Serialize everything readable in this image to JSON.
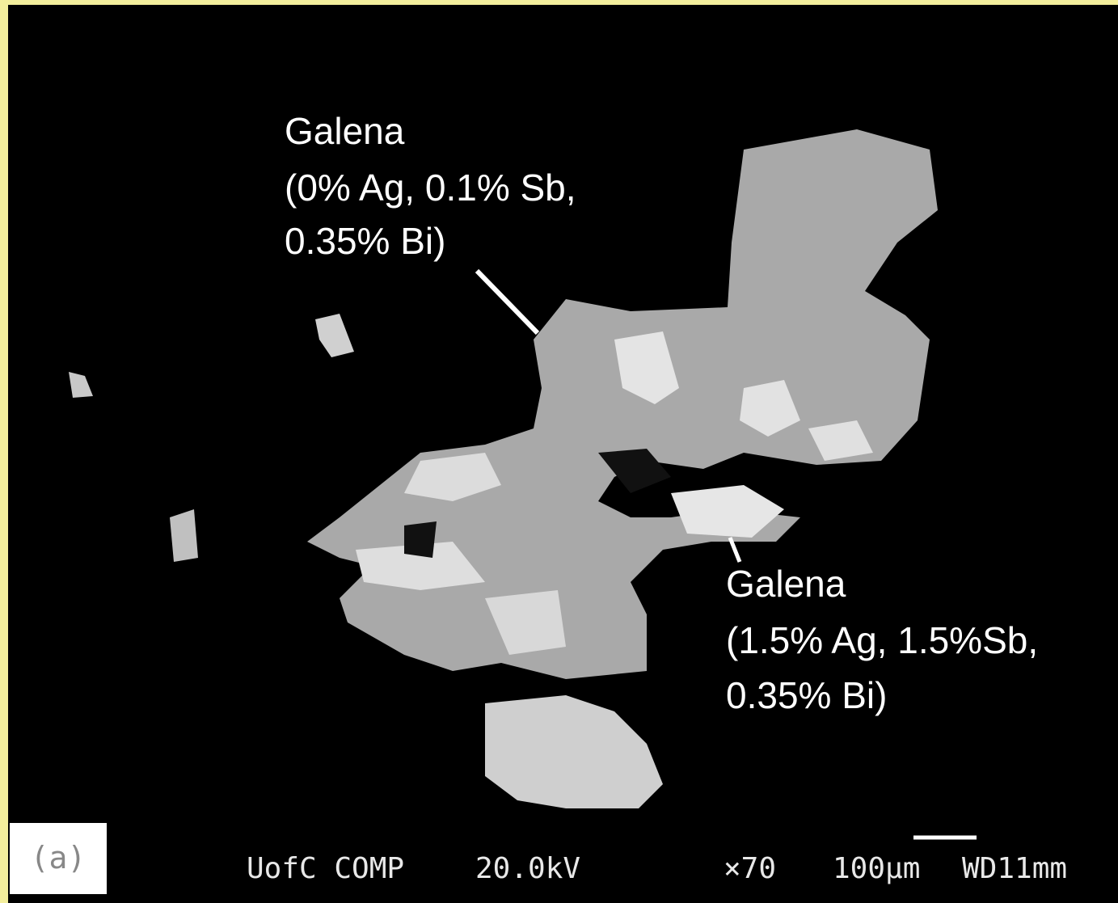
{
  "labels": [
    {
      "lines": [
        "Galena",
        "(0% Ag, 0.1% Sb,",
        "0.35% Bi)"
      ]
    },
    {
      "lines": [
        "Galena",
        "(1.5% Ag, 1.5%Sb,",
        "0.35% Bi)"
      ]
    }
  ],
  "panel_label": "(a)",
  "footer": [
    "UofC COMP",
    "20.0kV",
    "×70",
    "100µm",
    "WD11mm"
  ]
}
